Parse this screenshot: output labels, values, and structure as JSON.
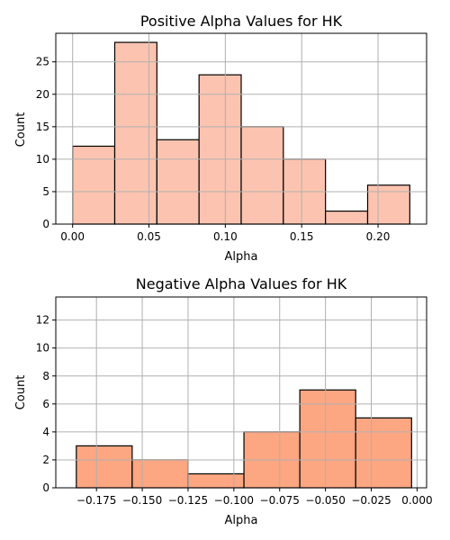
{
  "chart_data": [
    {
      "type": "bar",
      "title": "Positive Alpha Values for HK",
      "xlabel": "Alpha",
      "ylabel": "Count",
      "color": "#fcc4b0",
      "bins": [
        {
          "x0": 0.0,
          "x1": 0.0276,
          "count": 12
        },
        {
          "x0": 0.0276,
          "x1": 0.0552,
          "count": 28
        },
        {
          "x0": 0.0552,
          "x1": 0.0828,
          "count": 13
        },
        {
          "x0": 0.0828,
          "x1": 0.1104,
          "count": 23
        },
        {
          "x0": 0.1104,
          "x1": 0.138,
          "count": 15
        },
        {
          "x0": 0.138,
          "x1": 0.1656,
          "count": 10
        },
        {
          "x0": 0.1656,
          "x1": 0.1932,
          "count": 2
        },
        {
          "x0": 0.1932,
          "x1": 0.2208,
          "count": 6
        }
      ],
      "xlim": [
        -0.011,
        0.2318
      ],
      "ylim": [
        0,
        29.4
      ],
      "xticks": [
        0.0,
        0.05,
        0.1,
        0.15,
        0.2
      ],
      "xtick_labels": [
        "0.00",
        "0.05",
        "0.10",
        "0.15",
        "0.20"
      ],
      "yticks": [
        0,
        5,
        10,
        15,
        20,
        25
      ],
      "ytick_labels": [
        "0",
        "5",
        "10",
        "15",
        "20",
        "25"
      ],
      "grid": true
    },
    {
      "type": "bar",
      "title": "Negative Alpha Values for HK",
      "xlabel": "Alpha",
      "ylabel": "Count",
      "color": "#fca682",
      "bins": [
        {
          "x0": -0.186,
          "x1": -0.1555,
          "count": 3
        },
        {
          "x0": -0.1555,
          "x1": -0.125,
          "count": 2
        },
        {
          "x0": -0.125,
          "x1": -0.0945,
          "count": 1
        },
        {
          "x0": -0.0945,
          "x1": -0.064,
          "count": 4
        },
        {
          "x0": -0.064,
          "x1": -0.0335,
          "count": 7
        },
        {
          "x0": -0.0335,
          "x1": -0.003,
          "count": 5
        },
        {
          "x0": -0.003,
          "x1": 0.0,
          "count": 0
        }
      ],
      "xlim": [
        -0.1972,
        0.0052
      ],
      "ylim": [
        0,
        13.65
      ],
      "xticks": [
        -0.175,
        -0.15,
        -0.125,
        -0.1,
        -0.075,
        -0.05,
        -0.025,
        0.0
      ],
      "xtick_labels": [
        "−0.175",
        "−0.150",
        "−0.125",
        "−0.100",
        "−0.075",
        "−0.050",
        "−0.025",
        "0.000"
      ],
      "yticks": [
        0,
        2,
        4,
        6,
        8,
        10,
        12
      ],
      "ytick_labels": [
        "0",
        "2",
        "4",
        "6",
        "8",
        "10",
        "12"
      ],
      "grid": true
    }
  ]
}
